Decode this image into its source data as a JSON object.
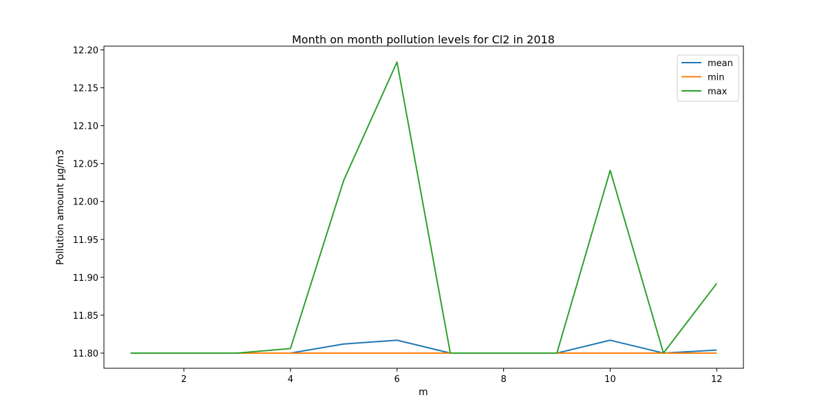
{
  "chart_data": {
    "type": "line",
    "title": "Month on month pollution levels for Cl2 in 2018",
    "xlabel": "m",
    "ylabel": "Pollution amount µg/m3",
    "x": [
      1,
      2,
      3,
      4,
      5,
      6,
      7,
      8,
      9,
      10,
      11,
      12
    ],
    "xlim": [
      0.5,
      12.5
    ],
    "ylim": [
      11.78,
      12.205
    ],
    "xticks": [
      2,
      4,
      6,
      8,
      10,
      12
    ],
    "yticks": [
      11.8,
      11.85,
      11.9,
      11.95,
      12.0,
      12.05,
      12.1,
      12.15,
      12.2
    ],
    "xtick_labels": [
      "2",
      "4",
      "6",
      "8",
      "10",
      "12"
    ],
    "ytick_labels": [
      "11.80",
      "11.85",
      "11.90",
      "11.95",
      "12.00",
      "12.05",
      "12.10",
      "12.15",
      "12.20"
    ],
    "grid": false,
    "legend_position": "top-right",
    "series": [
      {
        "name": "mean",
        "color": "#1f77b4",
        "values": [
          11.8,
          11.8,
          11.8,
          11.8,
          11.812,
          11.817,
          11.8,
          11.8,
          11.8,
          11.817,
          11.8,
          11.804
        ]
      },
      {
        "name": "min",
        "color": "#ff7f0e",
        "values": [
          11.8,
          11.8,
          11.8,
          11.8,
          11.8,
          11.8,
          11.8,
          11.8,
          11.8,
          11.8,
          11.8,
          11.8
        ]
      },
      {
        "name": "max",
        "color": "#2ca02c",
        "values": [
          11.8,
          11.8,
          11.8,
          11.806,
          12.028,
          12.184,
          11.8,
          11.8,
          11.8,
          12.041,
          11.8,
          11.892
        ]
      }
    ]
  }
}
